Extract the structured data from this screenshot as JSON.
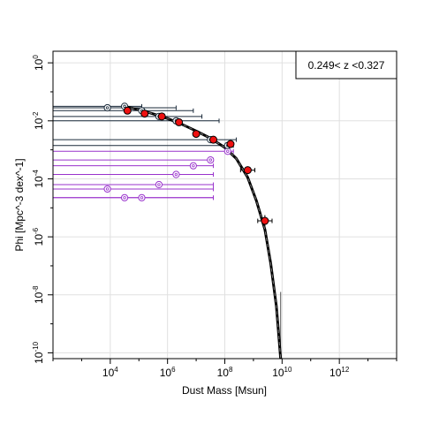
{
  "chart_data": {
    "type": "scatter",
    "xlabel": "Dust Mass [Msun]",
    "ylabel": "Phi [Mpc^-3 dex^-1]",
    "x_scale": "log",
    "y_scale": "log",
    "xlim_log10": [
      2.0,
      14.0
    ],
    "ylim_log10": [
      -10.2,
      0.4
    ],
    "x_tick_labels": [
      {
        "log": 4,
        "base": "10",
        "exp": "4"
      },
      {
        "log": 6,
        "base": "10",
        "exp": "6"
      },
      {
        "log": 8,
        "base": "10",
        "exp": "8"
      },
      {
        "log": 10,
        "base": "10",
        "exp": "10"
      },
      {
        "log": 12,
        "base": "10",
        "exp": "12"
      }
    ],
    "y_tick_labels": [
      {
        "log": 0,
        "base": "10",
        "exp": "0"
      },
      {
        "log": -2,
        "base": "10",
        "exp": "-2"
      },
      {
        "log": -4,
        "base": "10",
        "exp": "-4"
      },
      {
        "log": -6,
        "base": "10",
        "exp": "-6"
      },
      {
        "log": -8,
        "base": "10",
        "exp": "-8"
      },
      {
        "log": -10,
        "base": "10",
        "exp": "-10"
      }
    ],
    "grid": true,
    "legend_box_text": "0.249< z <0.327",
    "legend_placement": "top-right",
    "colors": {
      "dark_points": "#1a2a3a",
      "purple_points": "#9933cc",
      "red_fill": "#ee1111",
      "fit_line": "#000000",
      "grid": "#e0e0e0"
    },
    "series_red": [
      {
        "logx": 4.6,
        "logy": -1.65
      },
      {
        "logx": 5.2,
        "logy": -1.75
      },
      {
        "logx": 5.8,
        "logy": -1.85
      },
      {
        "logx": 6.4,
        "logy": -2.05
      },
      {
        "logx": 7.0,
        "logy": -2.45
      },
      {
        "logx": 7.6,
        "logy": -2.65
      },
      {
        "logx": 8.2,
        "logy": -2.8
      },
      {
        "logx": 8.8,
        "logy": -3.7,
        "xerr": [
          0.25,
          0.25
        ]
      },
      {
        "logx": 9.4,
        "logy": -5.45,
        "xerr": [
          0.25,
          0.25
        ],
        "yerr": [
          0.2,
          0.25
        ]
      }
    ],
    "series_dark_open": [
      {
        "logx": 3.9,
        "logy": -1.55,
        "xlow": 2.0,
        "xhigh": 6.3
      },
      {
        "logx": 4.5,
        "logy": -1.5,
        "xlow": 2.0,
        "xhigh": 5.1
      },
      {
        "logx": 5.1,
        "logy": -1.65,
        "xlow": 2.0,
        "xhigh": 6.9
      },
      {
        "logx": 5.7,
        "logy": -1.85,
        "xlow": 2.0,
        "xhigh": 7.2
      },
      {
        "logx": 6.3,
        "logy": -2.0,
        "xlow": 2.0,
        "xhigh": 7.8
      },
      {
        "logx": 7.5,
        "logy": -2.65,
        "xlow": 2.0,
        "xhigh": 8.4
      },
      {
        "logx": 8.1,
        "logy": -2.85,
        "xlow": 2.0,
        "xhigh": 8.3
      }
    ],
    "series_purple_open": [
      {
        "logx": 3.9,
        "logy": -4.35,
        "xlow": 2.0,
        "xhigh": 7.6
      },
      {
        "logx": 4.5,
        "logy": -4.65,
        "xlow": 2.0,
        "xhigh": 7.6
      },
      {
        "logx": 5.1,
        "logy": -4.65,
        "xlow": 2.0,
        "xhigh": 7.6
      },
      {
        "logx": 5.7,
        "logy": -4.2,
        "xlow": 2.0,
        "xhigh": 7.6
      },
      {
        "logx": 6.3,
        "logy": -3.85,
        "xlow": 2.0,
        "xhigh": 7.6
      },
      {
        "logx": 6.9,
        "logy": -3.55,
        "xlow": 2.0,
        "xhigh": 7.6
      },
      {
        "logx": 7.5,
        "logy": -3.35,
        "xlow": 2.0,
        "xhigh": 7.6
      },
      {
        "logx": 8.1,
        "logy": -3.05,
        "xlow": 2.0,
        "xhigh": 8.3
      }
    ],
    "fit_curve": [
      {
        "logx": 4.5,
        "logy": -1.5
      },
      {
        "logx": 5.0,
        "logy": -1.62
      },
      {
        "logx": 5.5,
        "logy": -1.76
      },
      {
        "logx": 6.0,
        "logy": -1.92
      },
      {
        "logx": 6.5,
        "logy": -2.12
      },
      {
        "logx": 7.0,
        "logy": -2.35
      },
      {
        "logx": 7.5,
        "logy": -2.6
      },
      {
        "logx": 8.0,
        "logy": -2.92
      },
      {
        "logx": 8.4,
        "logy": -3.3
      },
      {
        "logx": 8.8,
        "logy": -3.95
      },
      {
        "logx": 9.1,
        "logy": -4.75
      },
      {
        "logx": 9.4,
        "logy": -5.75
      },
      {
        "logx": 9.6,
        "logy": -6.9
      },
      {
        "logx": 9.8,
        "logy": -8.4
      },
      {
        "logx": 9.95,
        "logy": -10.2
      }
    ],
    "fit_band_vertical": {
      "logx": 9.95,
      "logy_top": -7.9,
      "logy_bottom": -10.2
    }
  }
}
